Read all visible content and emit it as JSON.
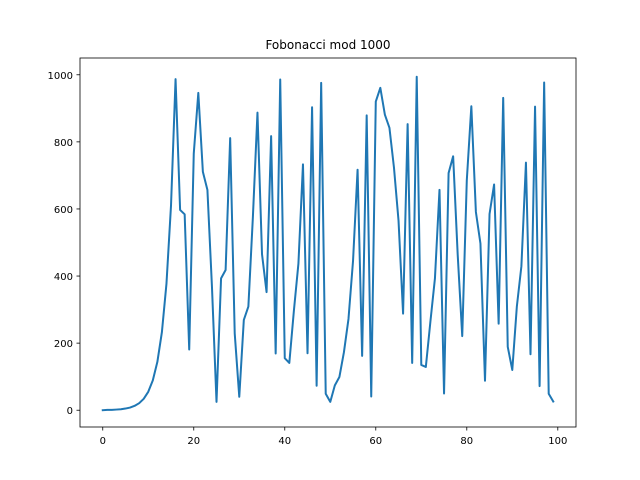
{
  "chart_data": {
    "type": "line",
    "title": "Fobonacci mod 1000",
    "xlabel": "",
    "ylabel": "",
    "xlim": [
      -5,
      104
    ],
    "ylim": [
      -50,
      1050
    ],
    "x_ticks": [
      0,
      20,
      40,
      60,
      80,
      100
    ],
    "y_ticks": [
      0,
      200,
      400,
      600,
      800,
      1000
    ],
    "grid": false,
    "legend": "none",
    "line_color": "#1f77b4",
    "series": [
      {
        "x": [
          0,
          1,
          2,
          3,
          4,
          5,
          6,
          7,
          8,
          9,
          10,
          11,
          12,
          13,
          14,
          15,
          16,
          17,
          18,
          19,
          20,
          21,
          22,
          23,
          24,
          25,
          26,
          27,
          28,
          29,
          30,
          31,
          32,
          33,
          34,
          35,
          36,
          37,
          38,
          39,
          40,
          41,
          42,
          43,
          44,
          45,
          46,
          47,
          48,
          49,
          50,
          51,
          52,
          53,
          54,
          55,
          56,
          57,
          58,
          59,
          60,
          61,
          62,
          63,
          64,
          65,
          66,
          67,
          68,
          69,
          70,
          71,
          72,
          73,
          74,
          75,
          76,
          77,
          78,
          79,
          80,
          81,
          82,
          83,
          84,
          85,
          86,
          87,
          88,
          89,
          90,
          91,
          92,
          93,
          94,
          95,
          96,
          97,
          98,
          99
        ],
        "values": [
          0,
          1,
          1,
          2,
          3,
          5,
          8,
          13,
          21,
          34,
          55,
          89,
          144,
          233,
          377,
          610,
          987,
          597,
          584,
          181,
          765,
          946,
          711,
          657,
          368,
          25,
          393,
          418,
          811,
          229,
          40,
          269,
          309,
          578,
          887,
          465,
          352,
          817,
          169,
          986,
          155,
          141,
          296,
          437,
          733,
          170,
          903,
          73,
          976,
          49,
          25,
          74,
          99,
          173,
          272,
          445,
          717,
          162,
          879,
          41,
          920,
          961,
          881,
          842,
          723,
          565,
          288,
          853,
          141,
          994,
          135,
          129,
          264,
          393,
          657,
          50,
          707,
          757,
          464,
          221,
          685,
          906,
          591,
          497,
          88,
          585,
          673,
          258,
          931,
          189,
          120,
          309,
          429,
          738,
          167,
          905,
          72,
          977,
          49,
          26
        ]
      }
    ]
  }
}
